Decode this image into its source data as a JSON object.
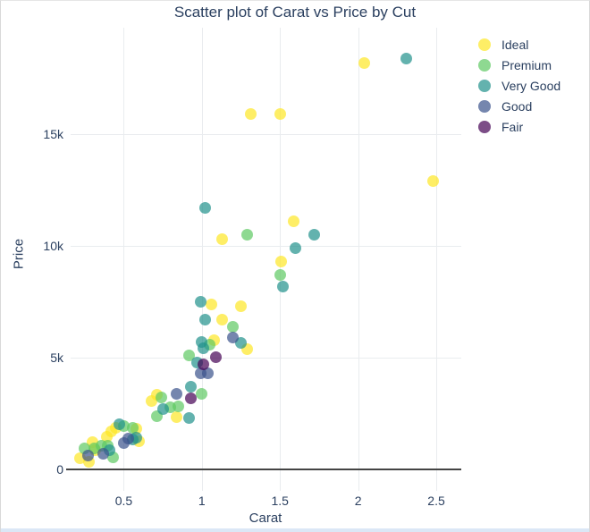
{
  "title": "Scatter plot of Carat vs Price by Cut",
  "colors": {
    "text": "#2a3f5f",
    "grid": "#e9ecef",
    "zeroline": "#444444",
    "background": "#ffffff"
  },
  "chart_data": {
    "type": "scatter",
    "title": "Scatter plot of Carat vs Price by Cut",
    "xlabel": "Carat",
    "ylabel": "Price",
    "xlim": [
      0.16,
      2.66
    ],
    "ylim": [
      -960,
      19760
    ],
    "grid": true,
    "zeroline_y": 0,
    "legend_position": "top-right",
    "marker": {
      "size": 13,
      "opacity": 0.7
    },
    "x_ticks": {
      "values": [
        0.5,
        1,
        1.5,
        2,
        2.5
      ],
      "labels": [
        "0.5",
        "1",
        "1.5",
        "2",
        "2.5"
      ]
    },
    "y_ticks": {
      "values": [
        0,
        5000,
        10000,
        15000
      ],
      "labels": [
        "0",
        "5k",
        "10k",
        "15k"
      ]
    },
    "series": [
      {
        "name": "Ideal",
        "color": "#fde725",
        "points": [
          [
            2.04,
            18200
          ],
          [
            1.31,
            15900
          ],
          [
            1.5,
            15900
          ],
          [
            2.48,
            12900
          ],
          [
            1.59,
            11100
          ],
          [
            1.13,
            10300
          ],
          [
            1.51,
            9300
          ],
          [
            1.06,
            7400
          ],
          [
            1.25,
            7300
          ],
          [
            1.13,
            6700
          ],
          [
            1.08,
            5800
          ],
          [
            1.29,
            5400
          ],
          [
            0.84,
            2350
          ],
          [
            0.71,
            3350
          ],
          [
            0.68,
            3050
          ],
          [
            0.58,
            1840
          ],
          [
            0.6,
            1250
          ],
          [
            0.45,
            1880
          ],
          [
            0.42,
            1720
          ],
          [
            0.39,
            1480
          ],
          [
            0.3,
            1240
          ],
          [
            0.32,
            880
          ],
          [
            0.22,
            520
          ],
          [
            0.28,
            360
          ]
        ]
      },
      {
        "name": "Premium",
        "color": "#5ec962",
        "points": [
          [
            1.29,
            10500
          ],
          [
            1.5,
            8700
          ],
          [
            1.2,
            6400
          ],
          [
            1.05,
            5600
          ],
          [
            0.92,
            5100
          ],
          [
            1.0,
            3400
          ],
          [
            0.85,
            2840
          ],
          [
            0.74,
            3240
          ],
          [
            0.8,
            2800
          ],
          [
            0.71,
            2400
          ],
          [
            0.5,
            1960
          ],
          [
            0.56,
            1880
          ],
          [
            0.36,
            1080
          ],
          [
            0.4,
            1080
          ],
          [
            0.25,
            960
          ],
          [
            0.31,
            960
          ],
          [
            0.43,
            560
          ]
        ]
      },
      {
        "name": "Very Good",
        "color": "#21918c",
        "points": [
          [
            2.31,
            18400
          ],
          [
            1.02,
            11700
          ],
          [
            1.72,
            10500
          ],
          [
            1.6,
            9900
          ],
          [
            1.52,
            8200
          ],
          [
            0.99,
            7500
          ],
          [
            1.02,
            6700
          ],
          [
            1.25,
            5650
          ],
          [
            1.0,
            5700
          ],
          [
            1.01,
            5440
          ],
          [
            0.97,
            4800
          ],
          [
            0.93,
            3700
          ],
          [
            0.92,
            2300
          ],
          [
            0.75,
            2720
          ],
          [
            0.47,
            2040
          ],
          [
            0.58,
            1440
          ],
          [
            0.56,
            1360
          ],
          [
            0.41,
            880
          ]
        ]
      },
      {
        "name": "Good",
        "color": "#3b528b",
        "points": [
          [
            1.2,
            5900
          ],
          [
            0.99,
            4300
          ],
          [
            1.04,
            4300
          ],
          [
            0.84,
            3400
          ],
          [
            0.53,
            1400
          ],
          [
            0.5,
            1200
          ],
          [
            0.37,
            720
          ],
          [
            0.27,
            640
          ]
        ]
      },
      {
        "name": "Fair",
        "color": "#440154",
        "points": [
          [
            1.09,
            5040
          ],
          [
            1.01,
            4720
          ],
          [
            0.93,
            3200
          ]
        ]
      }
    ]
  }
}
